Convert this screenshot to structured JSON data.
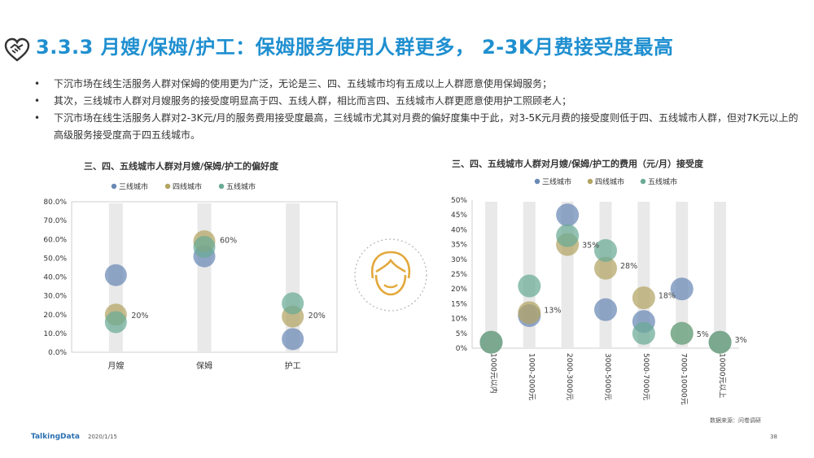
{
  "colors": {
    "title": "#1f8fd0",
    "tier3": "#6a88b5",
    "tier4": "#b3a462",
    "tier5": "#6aaa96",
    "band": "#e9e9e9"
  },
  "logo_icon": "handshake-heart-icon",
  "center_icon": "nanny-face-icon",
  "title": "3.3.3 月嫂/保姆/护工：保姆服务使用人群更多， 2-3K月费接受度最高",
  "bullets": [
    "下沉市场在线生活服务人群对保姆的使用更为广泛，无论是三、四、五线城市均有五成以上人群愿意使用保姆服务；",
    "其次，三线城市人群对月嫂服务的接受度明显高于四、五线人群，相比而言四、五线城市人群更愿意使用护工照顾老人；",
    "下沉市场在线生活服务人群对2-3K元/月的服务费用接受度最高，三线城市尤其对月费的偏好度集中于此，对3-5K元月费的接受度则低于四、五线城市人群，但对7K元以上的高级服务接受度高于四五线城市。"
  ],
  "chart_data": [
    {
      "type": "scatter",
      "title": "三、四、五线城市人群对月嫂/保姆/护工的偏好度",
      "legend": [
        "三线城市",
        "四线城市",
        "五线城市"
      ],
      "legend_position": "top",
      "categories": [
        "月嫂",
        "保姆",
        "护工"
      ],
      "ylim": [
        0,
        0.8
      ],
      "yticks": [
        "0.0%",
        "10.0%",
        "20.0%",
        "30.0%",
        "40.0%",
        "50.0%",
        "60.0%",
        "70.0%",
        "80.0%"
      ],
      "series": [
        {
          "name": "三线城市",
          "values": [
            0.41,
            0.51,
            0.07
          ]
        },
        {
          "name": "四线城市",
          "values": [
            0.2,
            0.59,
            0.19
          ]
        },
        {
          "name": "五线城市",
          "values": [
            0.16,
            0.56,
            0.26
          ]
        }
      ],
      "data_labels": [
        "20%",
        "60%",
        "20%"
      ],
      "data_label_values": [
        0.2,
        0.6,
        0.2
      ]
    },
    {
      "type": "scatter",
      "title": "三、四、五线城市人群对月嫂/保姆/护工的费用（元/月）接受度",
      "legend": [
        "三线城市",
        "四线城市",
        "五线城市"
      ],
      "legend_position": "top",
      "categories": [
        "1000元以内",
        "1000-2000元",
        "2000-3000元",
        "3000-5000元",
        "5000-7000元",
        "7000-10000元",
        "10000元以上"
      ],
      "ylim": [
        0,
        0.5
      ],
      "yticks": [
        "0%",
        "5%",
        "10%",
        "15%",
        "20%",
        "25%",
        "30%",
        "35%",
        "40%",
        "45%",
        "50%"
      ],
      "series": [
        {
          "name": "三线城市",
          "values": [
            0.02,
            0.11,
            0.45,
            0.13,
            0.09,
            0.2,
            0.02
          ]
        },
        {
          "name": "四线城市",
          "values": [
            0.02,
            0.12,
            0.35,
            0.27,
            0.17,
            0.05,
            0.02
          ]
        },
        {
          "name": "五线城市",
          "values": [
            0.02,
            0.21,
            0.38,
            0.33,
            0.05,
            0.05,
            0.02
          ]
        }
      ],
      "data_labels": [
        "13%",
        "35%",
        "28%",
        "18%",
        "5%",
        "3%"
      ],
      "data_label_values": [
        0.13,
        0.35,
        0.28,
        0.18,
        0.05,
        0.03
      ],
      "data_label_categories": [
        1,
        2,
        3,
        4,
        5,
        6
      ]
    }
  ],
  "footer": {
    "brand": "TalkingData",
    "date": "2020/1/15",
    "page": "38",
    "source": "数据来源：问卷调研"
  }
}
